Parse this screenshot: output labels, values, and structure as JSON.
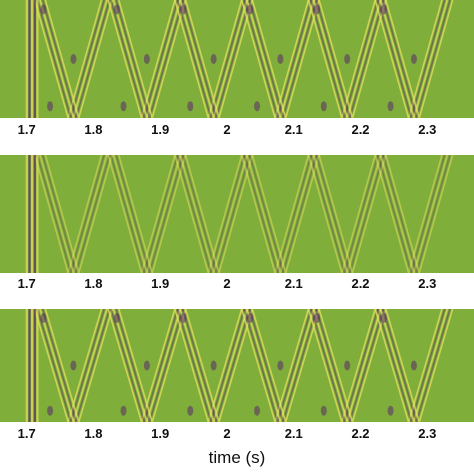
{
  "chart_data": {
    "type": "heatmap",
    "xlabel": "time (s)",
    "xlim": [
      1.66,
      2.37
    ],
    "x_ticks": [
      "1.7",
      "1.8",
      "1.9",
      "2",
      "2.1",
      "2.2",
      "2.3"
    ],
    "colors": {
      "background": "#7fae3a",
      "positive": "#e8e060",
      "negative": "#5a2a6a"
    },
    "panels": [
      {
        "onset": 1.7,
        "reflection_times": [
          1.72,
          1.83,
          1.93,
          2.03,
          2.13,
          2.23
        ],
        "strength": 1.0
      },
      {
        "onset": 1.7,
        "reflection_times": [
          1.72,
          1.83,
          1.93,
          2.03,
          2.13,
          2.23
        ],
        "strength": 0.7
      },
      {
        "onset": 1.7,
        "reflection_times": [
          1.72,
          1.83,
          1.93,
          2.03,
          2.13,
          2.23
        ],
        "strength": 1.0
      }
    ]
  }
}
